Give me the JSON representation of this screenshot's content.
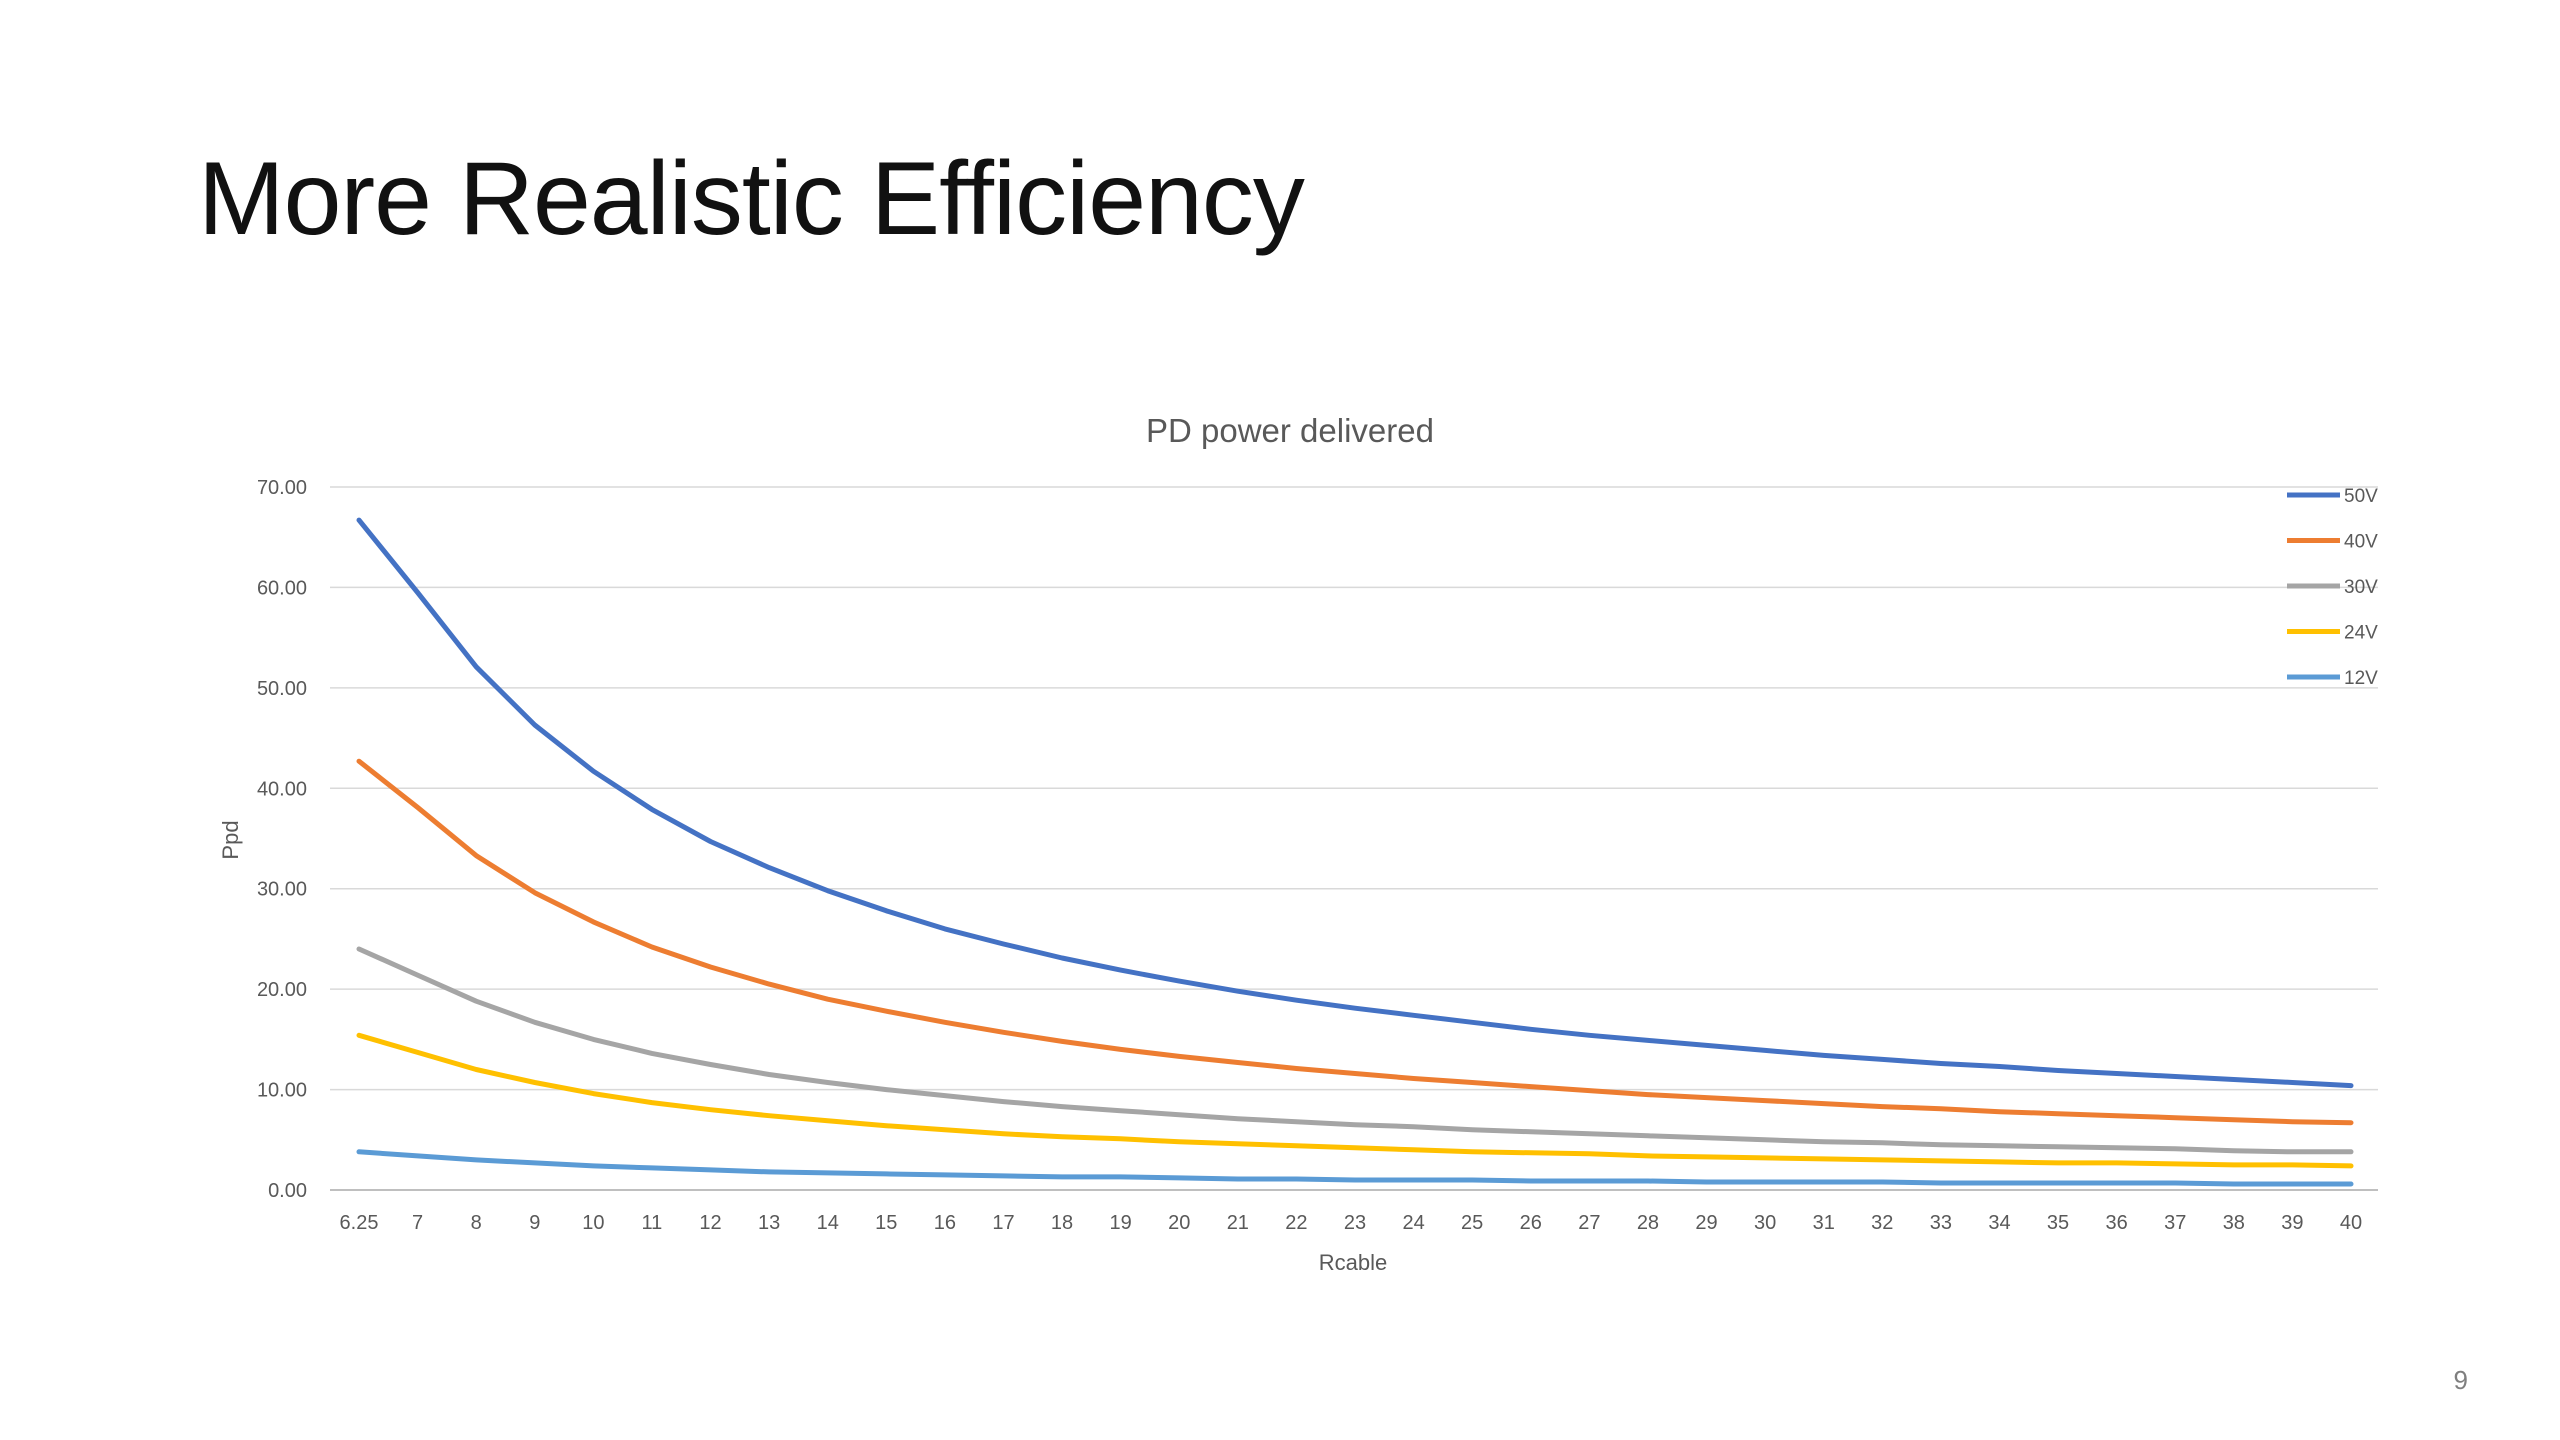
{
  "slide": {
    "title": "More Realistic Efficiency",
    "page_number": "9"
  },
  "chart_data": {
    "type": "line",
    "title": "PD power delivered",
    "xlabel": "Rcable",
    "ylabel": "Ppd",
    "ylim": [
      0,
      70
    ],
    "yticks": [
      "0.00",
      "10.00",
      "20.00",
      "30.00",
      "40.00",
      "50.00",
      "60.00",
      "70.00"
    ],
    "categories": [
      "6.25",
      "7",
      "8",
      "9",
      "10",
      "11",
      "12",
      "13",
      "14",
      "15",
      "16",
      "17",
      "18",
      "19",
      "20",
      "21",
      "22",
      "23",
      "24",
      "25",
      "26",
      "27",
      "28",
      "29",
      "30",
      "31",
      "32",
      "33",
      "34",
      "35",
      "36",
      "37",
      "38",
      "39",
      "40"
    ],
    "grid": true,
    "legend_position": "top-right",
    "series": [
      {
        "name": "50V",
        "color": "#4472C4",
        "values": [
          66.7,
          59.5,
          52.1,
          46.3,
          41.7,
          37.9,
          34.7,
          32.1,
          29.8,
          27.8,
          26.0,
          24.5,
          23.1,
          21.9,
          20.8,
          19.8,
          18.9,
          18.1,
          17.4,
          16.7,
          16.0,
          15.4,
          14.9,
          14.4,
          13.9,
          13.4,
          13.0,
          12.6,
          12.3,
          11.9,
          11.6,
          11.3,
          11.0,
          10.7,
          10.4
        ]
      },
      {
        "name": "40V",
        "color": "#ED7D31",
        "values": [
          42.7,
          38.1,
          33.3,
          29.6,
          26.7,
          24.2,
          22.2,
          20.5,
          19.0,
          17.8,
          16.7,
          15.7,
          14.8,
          14.0,
          13.3,
          12.7,
          12.1,
          11.6,
          11.1,
          10.7,
          10.3,
          9.9,
          9.5,
          9.2,
          8.9,
          8.6,
          8.3,
          8.1,
          7.8,
          7.6,
          7.4,
          7.2,
          7.0,
          6.8,
          6.7
        ]
      },
      {
        "name": "30V",
        "color": "#A5A5A5",
        "values": [
          24.0,
          21.4,
          18.8,
          16.7,
          15.0,
          13.6,
          12.5,
          11.5,
          10.7,
          10.0,
          9.4,
          8.8,
          8.3,
          7.9,
          7.5,
          7.1,
          6.8,
          6.5,
          6.3,
          6.0,
          5.8,
          5.6,
          5.4,
          5.2,
          5.0,
          4.8,
          4.7,
          4.5,
          4.4,
          4.3,
          4.2,
          4.1,
          3.9,
          3.8,
          3.8
        ]
      },
      {
        "name": "24V",
        "color": "#FFC000",
        "values": [
          15.4,
          13.7,
          12.0,
          10.7,
          9.6,
          8.7,
          8.0,
          7.4,
          6.9,
          6.4,
          6.0,
          5.6,
          5.3,
          5.1,
          4.8,
          4.6,
          4.4,
          4.2,
          4.0,
          3.8,
          3.7,
          3.6,
          3.4,
          3.3,
          3.2,
          3.1,
          3.0,
          2.9,
          2.8,
          2.7,
          2.7,
          2.6,
          2.5,
          2.5,
          2.4
        ]
      },
      {
        "name": "12V",
        "color": "#5B9BD5",
        "values": [
          3.8,
          3.4,
          3.0,
          2.7,
          2.4,
          2.2,
          2.0,
          1.8,
          1.7,
          1.6,
          1.5,
          1.4,
          1.3,
          1.3,
          1.2,
          1.1,
          1.1,
          1.0,
          1.0,
          1.0,
          0.9,
          0.9,
          0.9,
          0.8,
          0.8,
          0.8,
          0.8,
          0.7,
          0.7,
          0.7,
          0.7,
          0.7,
          0.6,
          0.6,
          0.6
        ]
      }
    ]
  }
}
